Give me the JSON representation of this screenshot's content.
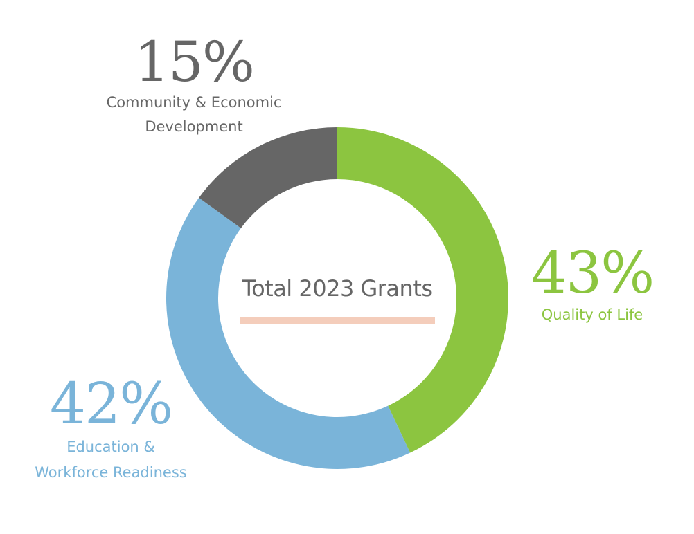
{
  "chart_data": {
    "type": "pie",
    "variant": "donut",
    "center_title": "Total 2023 Grants",
    "slices": [
      {
        "name": "Quality of Life",
        "value": 43,
        "percent_label": "43%",
        "color": "#8cc540"
      },
      {
        "name": "Education & Workforce Readiness",
        "value": 42,
        "percent_label": "42%",
        "color": "#7ab4d9"
      },
      {
        "name": "Community & Economic Development",
        "value": 15,
        "percent_label": "15%",
        "color": "#666666"
      }
    ],
    "label_lines": {
      "quality": [
        "Quality of Life"
      ],
      "education": [
        "Education &",
        "Workforce Readiness"
      ],
      "community": [
        "Community & Economic",
        "Development"
      ]
    },
    "start_position": "12 o'clock",
    "direction": "clockwise",
    "accent_underline_color": "#f4cdbb"
  }
}
